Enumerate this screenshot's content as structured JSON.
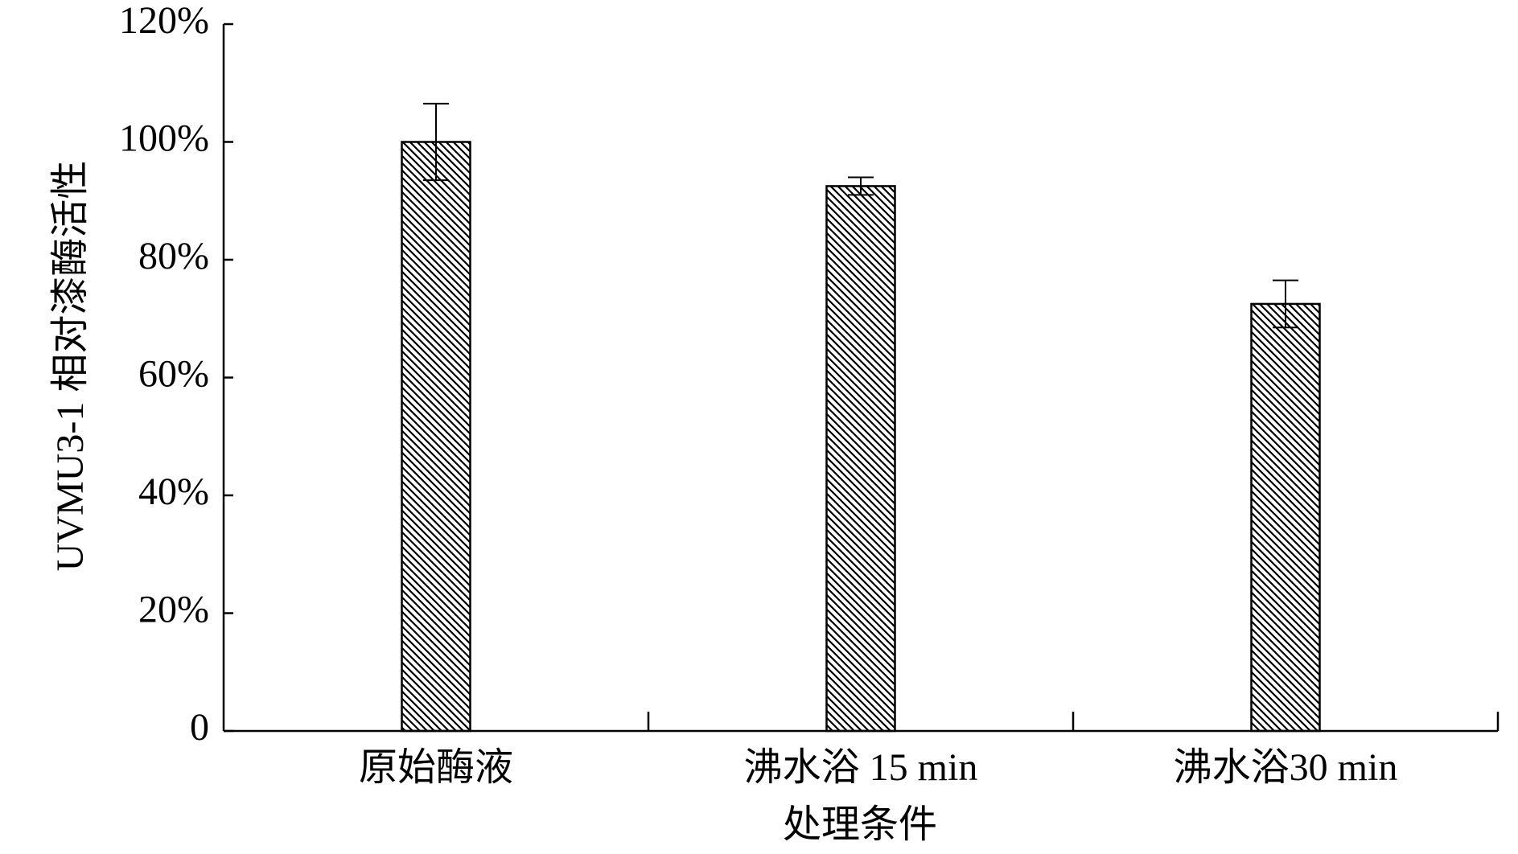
{
  "chart_data": {
    "type": "bar",
    "ylabel": "UVMU3-1 相对漆酶活性",
    "xlabel": "处理条件",
    "categories": [
      "原始酶液",
      "沸水浴 15 min",
      "沸水浴30 min"
    ],
    "values": [
      100,
      92.5,
      72.5
    ],
    "errors": [
      6.5,
      1.5,
      4
    ],
    "color": "#000000",
    "ylim": [
      0,
      120
    ],
    "yticks": [
      0,
      {
        "value": 20,
        "label": "20%"
      },
      {
        "value": 40,
        "label": "40%"
      },
      {
        "value": 60,
        "label": "60%"
      },
      {
        "value": 80,
        "label": "80%"
      },
      {
        "value": 100,
        "label": "100%"
      },
      {
        "value": 120,
        "label": "120%"
      }
    ]
  }
}
